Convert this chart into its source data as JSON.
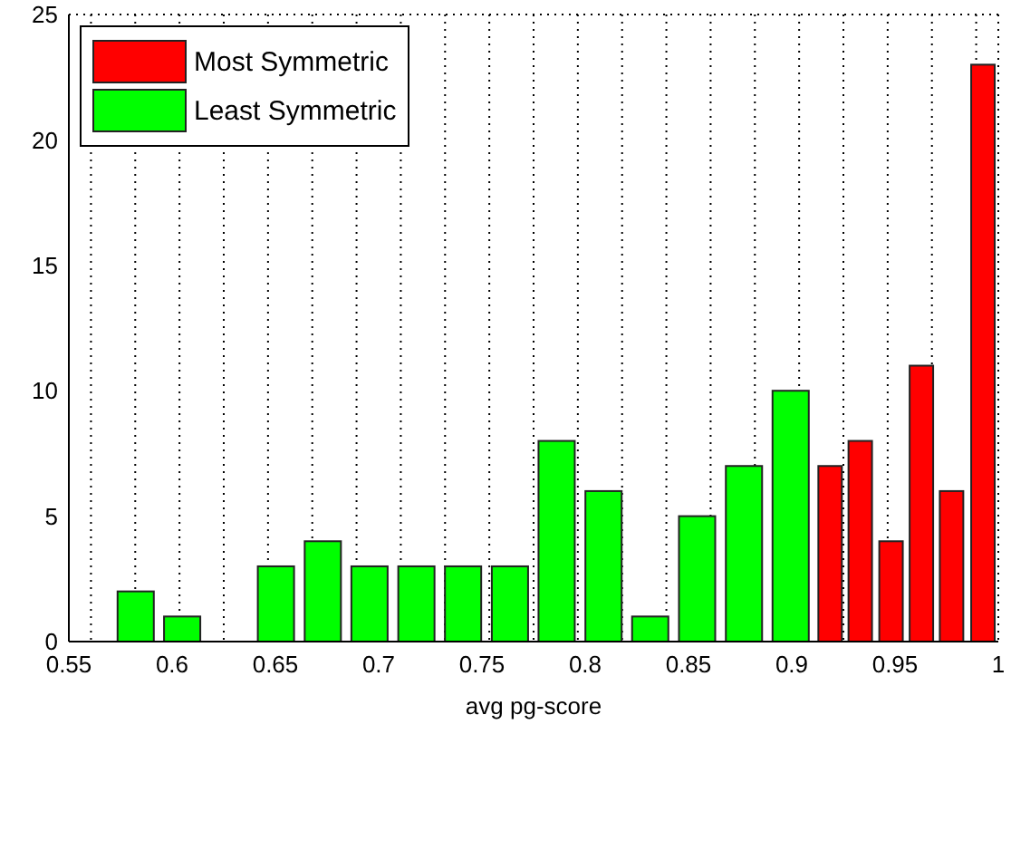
{
  "chart_data": {
    "type": "bar",
    "xlabel": "avg pg-score",
    "xlim": [
      0.55,
      1
    ],
    "xticks": [
      0.55,
      0.6,
      0.65,
      0.7,
      0.75,
      0.8,
      0.85,
      0.9,
      0.95,
      1
    ],
    "ylim": [
      0,
      25
    ],
    "yticks": [
      0,
      5,
      10,
      15,
      20,
      25
    ],
    "grid": true,
    "legend": "top left",
    "series": [
      {
        "name": "Most Symmetric",
        "color": "#ff0000",
        "x": [
          0.9187,
          0.9333,
          0.9482,
          0.9629,
          0.9775,
          0.9927
        ],
        "values": [
          7,
          8,
          4,
          11,
          6,
          23
        ]
      },
      {
        "name": "Least Symmetric",
        "color": "#00ff00",
        "x": [
          0.5825,
          0.605,
          0.6278,
          0.6504,
          0.6731,
          0.6957,
          0.7184,
          0.741,
          0.7637,
          0.7863,
          0.809,
          0.8316,
          0.8543,
          0.877,
          0.8996
        ],
        "values": [
          2,
          1,
          0,
          3,
          4,
          3,
          3,
          3,
          3,
          8,
          6,
          1,
          5,
          7,
          10
        ]
      }
    ]
  }
}
